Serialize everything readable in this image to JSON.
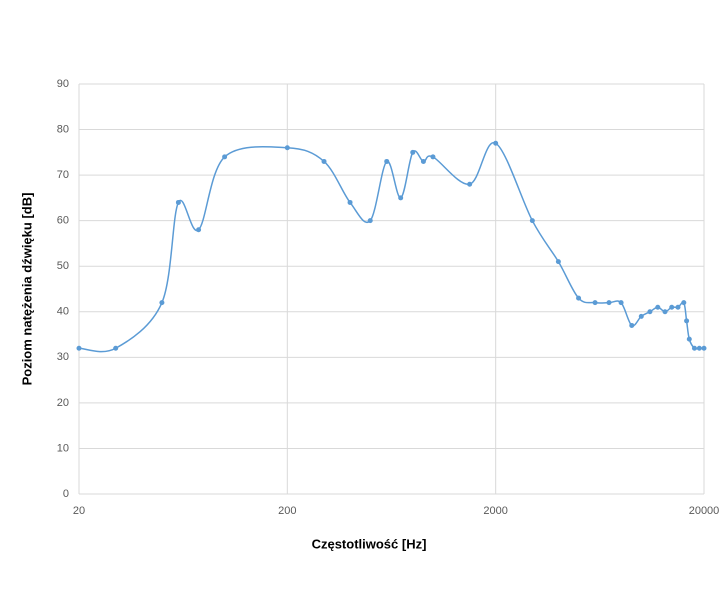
{
  "chart_data": {
    "type": "line",
    "x_label": "Częstotliwość [Hz]",
    "y_label": "Poziom natężenia dźwięku [dB]",
    "x": [
      20,
      30,
      50,
      60,
      75,
      100,
      200,
      300,
      400,
      500,
      600,
      700,
      800,
      900,
      1000,
      1500,
      2000,
      3000,
      4000,
      5000,
      6000,
      7000,
      8000,
      9000,
      10000,
      11000,
      12000,
      13000,
      14000,
      15000,
      16000,
      16500,
      17000,
      18000,
      19000,
      20000
    ],
    "series": [
      {
        "color": "#5b9bd5",
        "values": [
          32,
          32,
          42,
          64,
          58,
          74,
          76,
          73,
          64,
          60,
          73,
          65,
          75,
          73,
          74,
          68,
          77,
          60,
          51,
          43,
          42,
          42,
          42,
          37,
          39,
          40,
          41,
          40,
          41,
          41,
          42,
          38,
          34,
          32,
          32,
          32
        ]
      }
    ],
    "xlim": [
      20,
      20000
    ],
    "xticks": [
      20,
      200,
      2000,
      20000
    ],
    "xscale": "log",
    "ylim": [
      0,
      90
    ],
    "yticks": [
      0,
      10,
      20,
      30,
      40,
      50,
      60,
      70,
      80,
      90
    ],
    "grid": true,
    "smooth": true
  }
}
